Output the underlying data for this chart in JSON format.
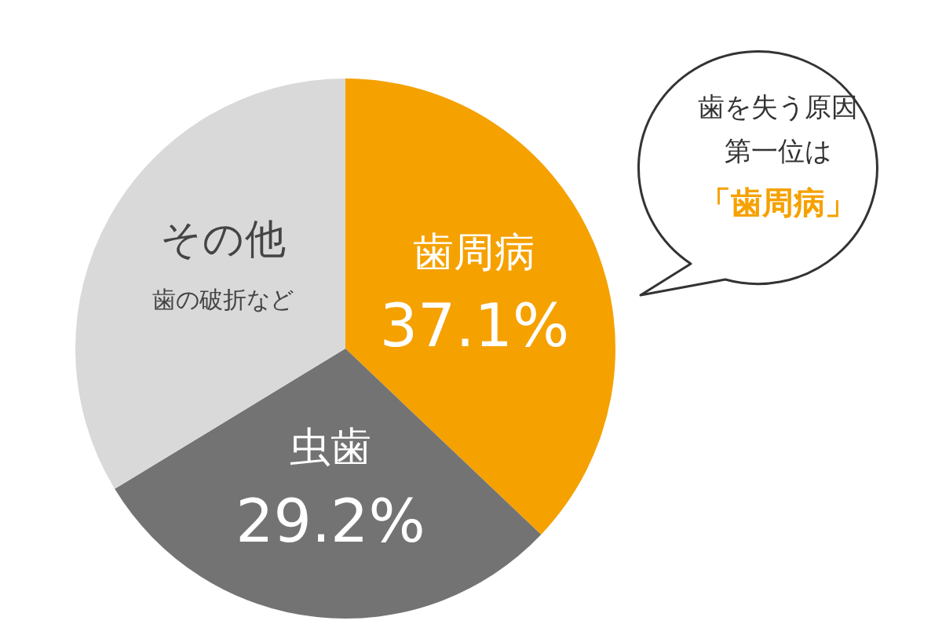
{
  "chart_data": {
    "type": "pie",
    "categories": [
      "歯周病",
      "虫歯",
      "その他"
    ],
    "values": [
      37.1,
      29.2,
      33.7
    ],
    "colors": [
      "#f5a100",
      "#737373",
      "#d9d9d9"
    ],
    "value_labels": [
      "37.1%",
      "29.2%",
      null
    ],
    "legend": false,
    "annotations": [
      {
        "text": "歯の破折など",
        "x": "その他"
      },
      "歯を失う原因",
      "第一位は",
      "「歯周病」"
    ]
  }
}
